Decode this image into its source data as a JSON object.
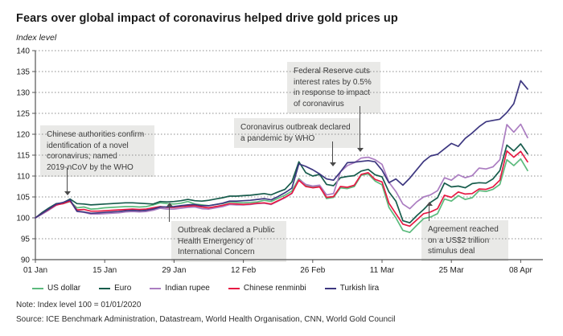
{
  "header": {
    "title": "Fears over global impact of coronavirus helped drive gold prices up",
    "subtitle": "Index level"
  },
  "chart_data": {
    "type": "line",
    "title": "Fears over global impact of coronavirus helped drive gold prices up",
    "ylabel": "Index level",
    "ylim": [
      90,
      140
    ],
    "y_tick_step": 5,
    "grid": "dotted-horizontal",
    "legend_position": "bottom",
    "x_tick_labels": [
      "01 Jan",
      "15 Jan",
      "29 Jan",
      "12 Feb",
      "26 Feb",
      "11 Mar",
      "25 Mar",
      "08 Apr"
    ],
    "x": [
      "01 Jan",
      "02 Jan",
      "03 Jan",
      "06 Jan",
      "07 Jan",
      "08 Jan",
      "09 Jan",
      "10 Jan",
      "13 Jan",
      "14 Jan",
      "15 Jan",
      "16 Jan",
      "17 Jan",
      "20 Jan",
      "21 Jan",
      "22 Jan",
      "23 Jan",
      "24 Jan",
      "27 Jan",
      "28 Jan",
      "29 Jan",
      "30 Jan",
      "31 Jan",
      "03 Feb",
      "04 Feb",
      "05 Feb",
      "06 Feb",
      "07 Feb",
      "10 Feb",
      "11 Feb",
      "12 Feb",
      "13 Feb",
      "14 Feb",
      "17 Feb",
      "18 Feb",
      "19 Feb",
      "20 Feb",
      "21 Feb",
      "24 Feb",
      "25 Feb",
      "26 Feb",
      "27 Feb",
      "28 Feb",
      "02 Mar",
      "03 Mar",
      "04 Mar",
      "05 Mar",
      "06 Mar",
      "09 Mar",
      "10 Mar",
      "11 Mar",
      "12 Mar",
      "13 Mar",
      "16 Mar",
      "17 Mar",
      "18 Mar",
      "19 Mar",
      "20 Mar",
      "23 Mar",
      "24 Mar",
      "25 Mar",
      "26 Mar",
      "27 Mar",
      "30 Mar",
      "31 Mar",
      "01 Apr",
      "02 Apr",
      "03 Apr",
      "06 Apr",
      "07 Apr",
      "08 Apr",
      "09 Apr"
    ],
    "series": [
      {
        "name": "US dollar",
        "color": "#5cba7d",
        "values": [
          100.0,
          101.2,
          102.3,
          103.2,
          103.4,
          103.9,
          102.4,
          102.6,
          102.1,
          102.2,
          102.4,
          102.5,
          102.6,
          102.7,
          102.7,
          102.6,
          102.7,
          103.1,
          103.6,
          103.4,
          103.3,
          103.5,
          103.9,
          103.3,
          103.1,
          102.9,
          103.2,
          103.4,
          103.8,
          103.7,
          103.6,
          103.7,
          103.8,
          104.2,
          103.9,
          104.7,
          105.4,
          106.4,
          109.4,
          107.8,
          107.4,
          107.6,
          104.6,
          104.9,
          107.2,
          107.0,
          107.5,
          110.2,
          110.5,
          108.8,
          107.9,
          102.5,
          100.0,
          97.0,
          96.5,
          98.2,
          99.8,
          100.2,
          101.0,
          104.5,
          104.0,
          105.3,
          104.4,
          104.8,
          106.5,
          106.3,
          106.8,
          108.0,
          113.9,
          112.5,
          114.1,
          111.3
        ]
      },
      {
        "name": "Euro",
        "color": "#175c4c",
        "values": [
          100.0,
          101.3,
          102.4,
          103.4,
          103.6,
          104.5,
          103.4,
          103.3,
          103.1,
          103.2,
          103.3,
          103.4,
          103.5,
          103.6,
          103.6,
          103.5,
          103.4,
          103.3,
          103.9,
          103.8,
          103.9,
          104.1,
          104.4,
          104.1,
          104.0,
          104.2,
          104.5,
          104.8,
          105.2,
          105.2,
          105.3,
          105.4,
          105.6,
          105.8,
          105.5,
          106.2,
          106.8,
          108.6,
          113.4,
          110.8,
          110.0,
          110.4,
          108.0,
          107.7,
          109.6,
          109.9,
          110.1,
          111.2,
          111.6,
          110.3,
          109.8,
          106.2,
          104.0,
          99.3,
          98.8,
          100.5,
          102.0,
          103.7,
          104.8,
          108.3,
          107.4,
          107.6,
          107.2,
          108.2,
          108.4,
          108.3,
          109.3,
          111.3,
          117.4,
          116.0,
          117.7,
          115.3
        ]
      },
      {
        "name": "Indian rupee",
        "color": "#ab7dc1",
        "values": [
          100.0,
          100.9,
          101.9,
          103.0,
          103.6,
          104.1,
          101.5,
          101.3,
          100.9,
          100.9,
          101.0,
          101.1,
          101.2,
          101.4,
          101.5,
          101.4,
          101.5,
          101.8,
          102.3,
          102.1,
          102.1,
          102.3,
          102.5,
          102.6,
          102.2,
          102.1,
          102.4,
          102.7,
          103.2,
          103.1,
          103.1,
          103.2,
          103.4,
          103.5,
          103.2,
          104.0,
          104.8,
          105.8,
          109.2,
          108.0,
          107.6,
          107.8,
          105.5,
          105.8,
          111.0,
          112.5,
          113.2,
          114.3,
          114.5,
          113.9,
          112.8,
          108.5,
          106.3,
          103.3,
          102.2,
          103.8,
          105.0,
          105.5,
          106.5,
          109.6,
          109.0,
          110.3,
          109.6,
          110.1,
          111.9,
          111.7,
          112.2,
          113.9,
          122.3,
          120.5,
          122.4,
          119.2
        ]
      },
      {
        "name": "Chinese renminbi",
        "color": "#e61943",
        "values": [
          100.0,
          101.1,
          102.1,
          103.1,
          103.4,
          104.0,
          101.9,
          102.0,
          101.6,
          101.6,
          101.7,
          101.8,
          101.9,
          102.0,
          102.1,
          102.0,
          102.1,
          102.4,
          102.7,
          102.5,
          102.5,
          102.7,
          102.8,
          102.9,
          102.6,
          102.4,
          102.7,
          103.0,
          103.4,
          103.3,
          103.2,
          103.3,
          103.5,
          103.6,
          103.3,
          104.1,
          104.9,
          105.9,
          109.0,
          107.5,
          107.2,
          107.4,
          104.9,
          105.1,
          107.5,
          107.3,
          107.8,
          110.4,
          110.8,
          109.2,
          108.6,
          103.5,
          101.0,
          98.5,
          98.0,
          99.5,
          101.0,
          101.4,
          102.2,
          105.4,
          104.9,
          106.2,
          105.7,
          105.8,
          106.9,
          106.8,
          107.4,
          109.0,
          116.0,
          114.5,
          115.9,
          113.4
        ]
      },
      {
        "name": "Turkish lira",
        "color": "#3d3780",
        "values": [
          100.0,
          101.1,
          102.2,
          103.3,
          103.7,
          104.3,
          101.6,
          101.4,
          101.1,
          101.2,
          101.3,
          101.4,
          101.5,
          101.7,
          101.8,
          101.7,
          101.8,
          102.1,
          102.6,
          102.6,
          102.7,
          102.9,
          103.1,
          103.2,
          102.9,
          102.9,
          103.2,
          103.5,
          104.0,
          104.0,
          104.1,
          104.2,
          104.4,
          104.6,
          104.3,
          105.1,
          106.0,
          107.1,
          112.9,
          112.3,
          111.5,
          110.5,
          109.3,
          109.0,
          111.0,
          113.2,
          113.3,
          113.5,
          113.7,
          113.4,
          111.4,
          108.4,
          109.3,
          107.8,
          109.5,
          111.5,
          113.5,
          114.8,
          115.2,
          116.5,
          117.8,
          117.1,
          119.0,
          120.3,
          121.8,
          123.0,
          123.3,
          123.6,
          125.2,
          127.3,
          132.8,
          130.8
        ]
      }
    ],
    "annotations": [
      {
        "text": "Chinese authorities confirm\nidentification of a novel\ncoronavirus; named\n2019-nCoV by the WHO"
      },
      {
        "text": "Outbreak declared a Public\nHealth Emergency of\nInternational Concern"
      },
      {
        "text": "Coronavirus outbreak declared\na pandemic by WHO"
      },
      {
        "text": "Federal Reserve cuts\ninterest rates by 0.5%\nin response to impact\nof coronavirus"
      },
      {
        "text": "Agreement reached\non a US$2 trillion\nstimulus deal"
      }
    ]
  },
  "legend": {
    "items": [
      {
        "label": "US dollar",
        "color": "#5cba7d"
      },
      {
        "label": "Euro",
        "color": "#175c4c"
      },
      {
        "label": "Indian rupee",
        "color": "#ab7dc1"
      },
      {
        "label": "Chinese renminbi",
        "color": "#e61943"
      },
      {
        "label": "Turkish lira",
        "color": "#3d3780"
      }
    ]
  },
  "footer": {
    "note": "Note: Index level 100 = 01/01/2020",
    "source": "Source: ICE Benchmark Administration, Datastream, World Health Organisation, CNN, World Gold Council"
  }
}
